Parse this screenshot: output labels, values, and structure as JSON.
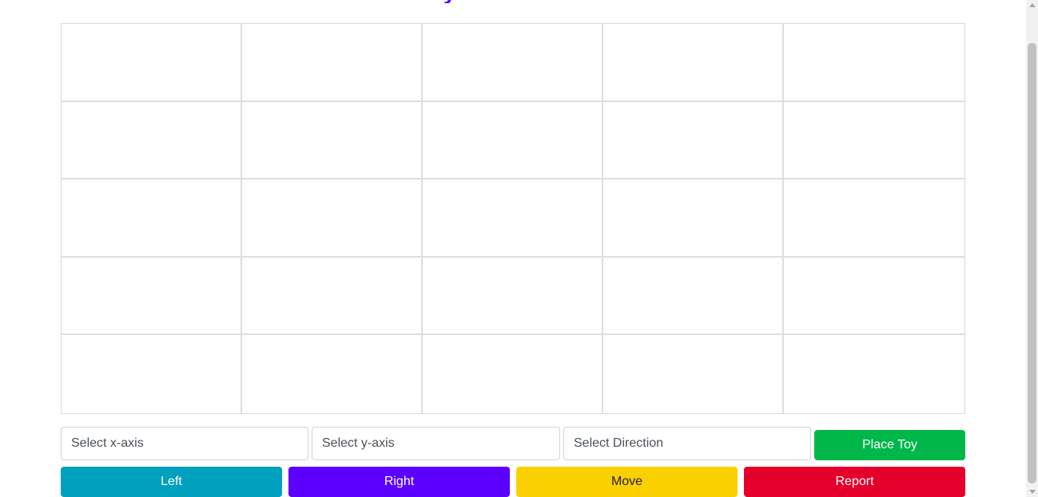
{
  "header": {
    "title_fragment": "y"
  },
  "board": {
    "rows": 5,
    "columns": 5
  },
  "controls": {
    "x_axis_select": {
      "placeholder": "Select x-axis",
      "value": "Select x-axis"
    },
    "y_axis_select": {
      "placeholder": "Select y-axis",
      "value": "Select y-axis"
    },
    "direction_select": {
      "placeholder": "Select Direction",
      "value": "Select Direction"
    },
    "place_label": "Place Toy"
  },
  "actions": {
    "left_label": "Left",
    "right_label": "Right",
    "move_label": "Move",
    "report_label": "Report"
  },
  "colors": {
    "accent": "#5b00ff",
    "place": "#00b74a",
    "left": "#00a0bf",
    "right": "#5b00ff",
    "move": "#fbd000",
    "report": "#e5002b"
  }
}
